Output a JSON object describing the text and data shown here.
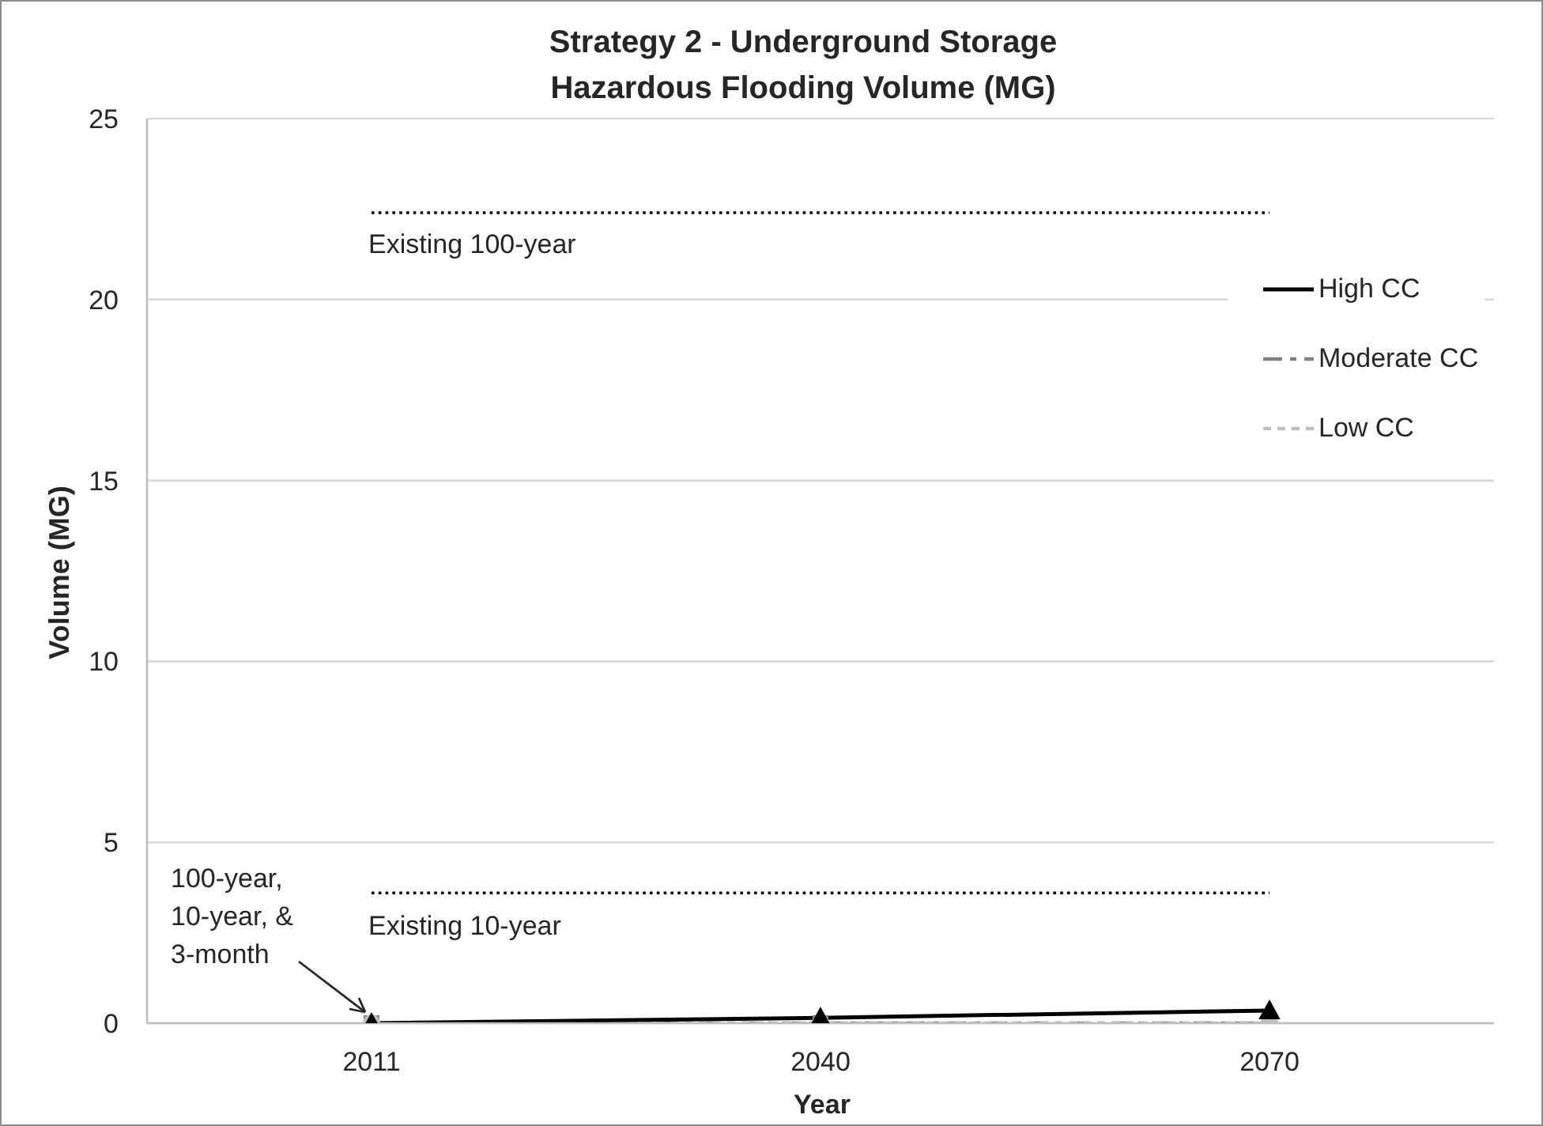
{
  "chart_data": {
    "type": "line",
    "title": "Strategy 2 - Underground Storage",
    "subtitle": "Hazardous Flooding Volume (MG)",
    "xlabel": "Year",
    "ylabel": "Volume (MG)",
    "categories": [
      "2011",
      "2040",
      "2070"
    ],
    "series": [
      {
        "name": "High CC",
        "color": "#000000",
        "values": [
          0,
          0.15,
          0.35
        ],
        "marker": "triangle",
        "line_style": "solid"
      },
      {
        "name": "Moderate CC",
        "color": "#808080",
        "values": [
          0,
          0,
          0
        ],
        "marker": "square",
        "line_style": "dashed"
      },
      {
        "name": "Low CC",
        "color": "#bfbfbf",
        "values": [
          0,
          0,
          0
        ],
        "marker": "circle",
        "line_style": "dashed"
      }
    ],
    "ylim": [
      0,
      25
    ],
    "yticks": [
      0,
      5,
      10,
      15,
      20,
      25
    ],
    "grid": "y",
    "legend": "right",
    "ref_lines": [
      {
        "axis": "y",
        "value": 22.4,
        "label": "Existing 100-year",
        "color": "#000000",
        "line_style": "dotted"
      },
      {
        "axis": "y",
        "value": 3.6,
        "label": "Existing 10-year",
        "color": "#000000",
        "line_style": "dotted"
      }
    ],
    "annotations": [
      {
        "text": "100-year, 10-year, & 3-month",
        "x": "2011",
        "y": 0
      }
    ]
  }
}
